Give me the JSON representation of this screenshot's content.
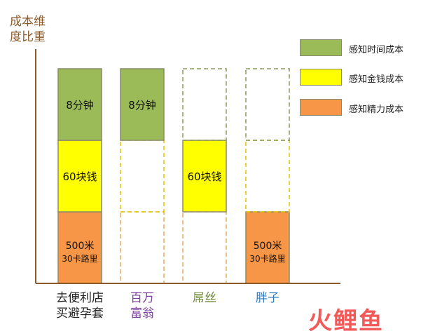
{
  "chart_data": {
    "type": "bar",
    "stacked": true,
    "ylabel_lines": [
      "成本维",
      "度比重"
    ],
    "categories": [
      {
        "lines": [
          "去便利店",
          "买避孕套"
        ],
        "color": "#222222"
      },
      {
        "lines": [
          "百万",
          "富翁"
        ],
        "color": "#7b3fa0"
      },
      {
        "lines": [
          "屌丝"
        ],
        "color": "#6f8a3a"
      },
      {
        "lines": [
          "胖子"
        ],
        "color": "#2b7bbf"
      }
    ],
    "series": [
      {
        "name": "感知精力成本",
        "color": "#f79646",
        "values": [
          1,
          0,
          0,
          1
        ],
        "labels": [
          [
            "500米",
            "30卡路里"
          ],
          [],
          [],
          [
            "500米",
            "30卡路里"
          ]
        ]
      },
      {
        "name": "感知金钱成本",
        "color": "#ffff00",
        "values": [
          1,
          0,
          1,
          0
        ],
        "labels": [
          [
            "60块钱"
          ],
          [],
          [
            "60块钱"
          ],
          []
        ]
      },
      {
        "name": "感知时间成本",
        "color": "#9bbb59",
        "values": [
          1,
          1,
          0,
          0
        ],
        "labels": [
          [
            "8分钟"
          ],
          [
            "8分钟"
          ],
          [],
          []
        ]
      }
    ],
    "empty_border_colors": [
      "#e6a85a",
      "#e6c400",
      "#8a9a5b"
    ],
    "legend_order": [
      "感知时间成本",
      "感知金钱成本",
      "感知精力成本"
    ],
    "legend_position": "top-right",
    "grid": false
  },
  "watermark": "火鲤鱼"
}
